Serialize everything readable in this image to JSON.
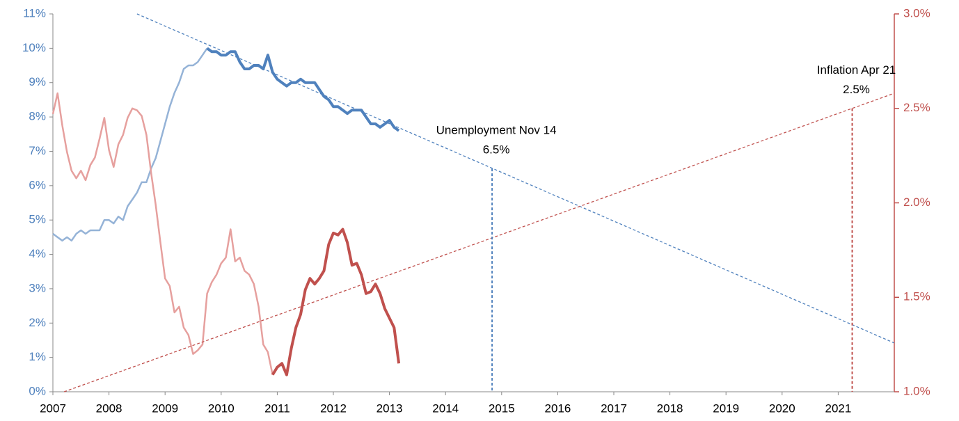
{
  "chart_data": {
    "type": "line",
    "xlim": [
      2007,
      2022
    ],
    "xticks": [
      2007,
      2008,
      2009,
      2010,
      2011,
      2012,
      2013,
      2014,
      2015,
      2016,
      2017,
      2018,
      2019,
      2020,
      2021
    ],
    "ylim": [
      0,
      11
    ],
    "yticks": [
      {
        "value": 0,
        "label": "0%"
      },
      {
        "value": 1,
        "label": "1%"
      },
      {
        "value": 2,
        "label": "2%"
      },
      {
        "value": 3,
        "label": "3%"
      },
      {
        "value": 4,
        "label": "4%"
      },
      {
        "value": 5,
        "label": "5%"
      },
      {
        "value": 6,
        "label": "6%"
      },
      {
        "value": 7,
        "label": "7%"
      },
      {
        "value": 8,
        "label": "8%"
      },
      {
        "value": 9,
        "label": "9%"
      },
      {
        "value": 10,
        "label": "10%"
      },
      {
        "value": 11,
        "label": "11%"
      }
    ],
    "y2lim": [
      1.0,
      3.0
    ],
    "y2ticks": [
      {
        "value": 1.0,
        "label": "1.0%"
      },
      {
        "value": 1.5,
        "label": "1.5%"
      },
      {
        "value": 2.0,
        "label": "2.0%"
      },
      {
        "value": 2.5,
        "label": "2.5%"
      },
      {
        "value": 3.0,
        "label": "3.0%"
      }
    ],
    "y_color": "#4f81bd",
    "y2_color": "#c0504d",
    "series": [
      {
        "color": "#95b3d7",
        "line_width": 2.5,
        "x": [
          2007.0,
          2007.083,
          2007.167,
          2007.25,
          2007.333,
          2007.417,
          2007.5,
          2007.583,
          2007.667,
          2007.75,
          2007.833,
          2007.917,
          2008.0,
          2008.083,
          2008.167,
          2008.25,
          2008.333,
          2008.417,
          2008.5,
          2008.583,
          2008.667,
          2008.75,
          2008.833,
          2008.917,
          2009.0,
          2009.083,
          2009.167,
          2009.25,
          2009.333,
          2009.417,
          2009.5,
          2009.583,
          2009.667,
          2009.75
        ],
        "values": [
          4.6,
          4.5,
          4.4,
          4.5,
          4.4,
          4.6,
          4.7,
          4.6,
          4.7,
          4.7,
          4.7,
          5.0,
          5.0,
          4.9,
          5.1,
          5.0,
          5.4,
          5.6,
          5.8,
          6.1,
          6.1,
          6.5,
          6.8,
          7.3,
          7.8,
          8.3,
          8.7,
          9.0,
          9.4,
          9.5,
          9.5,
          9.6,
          9.8,
          10.0
        ]
      },
      {
        "color": "#4f81bd",
        "line_width": 4,
        "x": [
          2009.75,
          2009.833,
          2009.917,
          2010.0,
          2010.083,
          2010.167,
          2010.25,
          2010.333,
          2010.417,
          2010.5,
          2010.583,
          2010.667,
          2010.75,
          2010.833,
          2010.917,
          2011.0,
          2011.083,
          2011.167,
          2011.25,
          2011.333,
          2011.417,
          2011.5,
          2011.583,
          2011.667,
          2011.75,
          2011.833,
          2011.917,
          2012.0,
          2012.083,
          2012.167,
          2012.25,
          2012.333,
          2012.417,
          2012.5,
          2012.583,
          2012.667,
          2012.75,
          2012.833,
          2012.917,
          2013.0,
          2013.083,
          2013.167
        ],
        "values": [
          10.0,
          9.9,
          9.9,
          9.8,
          9.8,
          9.9,
          9.9,
          9.6,
          9.4,
          9.4,
          9.5,
          9.5,
          9.4,
          9.8,
          9.3,
          9.1,
          9.0,
          8.9,
          9.0,
          9.0,
          9.1,
          9.0,
          9.0,
          9.0,
          8.8,
          8.6,
          8.5,
          8.3,
          8.3,
          8.2,
          8.1,
          8.2,
          8.2,
          8.2,
          8.0,
          7.8,
          7.8,
          7.7,
          7.8,
          7.9,
          7.7,
          7.6
        ]
      },
      {
        "color": "#e6a09e",
        "line_width": 2.5,
        "axis": "y2",
        "x": [
          2007.0,
          2007.083,
          2007.167,
          2007.25,
          2007.333,
          2007.417,
          2007.5,
          2007.583,
          2007.667,
          2007.75,
          2007.833,
          2007.917,
          2008.0,
          2008.083,
          2008.167,
          2008.25,
          2008.333,
          2008.417,
          2008.5,
          2008.583,
          2008.667,
          2008.75,
          2008.833,
          2008.917,
          2009.0,
          2009.083,
          2009.167,
          2009.25,
          2009.333,
          2009.417,
          2009.5,
          2009.583,
          2009.667,
          2009.75,
          2009.833,
          2009.917,
          2010.0,
          2010.083,
          2010.167,
          2010.25,
          2010.333,
          2010.417,
          2010.5,
          2010.583,
          2010.667,
          2010.75,
          2010.833,
          2010.917
        ],
        "values": [
          2.47,
          2.58,
          2.41,
          2.27,
          2.17,
          2.13,
          2.17,
          2.12,
          2.2,
          2.24,
          2.34,
          2.45,
          2.28,
          2.19,
          2.31,
          2.36,
          2.45,
          2.5,
          2.49,
          2.46,
          2.36,
          2.16,
          1.99,
          1.79,
          1.6,
          1.56,
          1.42,
          1.45,
          1.34,
          1.3,
          1.2,
          1.22,
          1.25,
          1.52,
          1.58,
          1.62,
          1.68,
          1.71,
          1.86,
          1.69,
          1.71,
          1.64,
          1.62,
          1.57,
          1.45,
          1.25,
          1.21,
          1.09
        ]
      },
      {
        "color": "#c0504d",
        "line_width": 4,
        "axis": "y2",
        "x": [
          2010.917,
          2011.0,
          2011.083,
          2011.167,
          2011.25,
          2011.333,
          2011.417,
          2011.5,
          2011.583,
          2011.667,
          2011.75,
          2011.833,
          2011.917,
          2012.0,
          2012.083,
          2012.167,
          2012.25,
          2012.333,
          2012.417,
          2012.5,
          2012.583,
          2012.667,
          2012.75,
          2012.833,
          2012.917,
          2013.0,
          2013.083,
          2013.167
        ],
        "values": [
          1.09,
          1.13,
          1.15,
          1.09,
          1.23,
          1.34,
          1.41,
          1.54,
          1.6,
          1.57,
          1.6,
          1.64,
          1.78,
          1.84,
          1.83,
          1.86,
          1.79,
          1.67,
          1.68,
          1.62,
          1.52,
          1.53,
          1.57,
          1.52,
          1.44,
          1.39,
          1.34,
          1.15
        ]
      },
      {
        "color": "#4f81bd",
        "line_width": 1.3,
        "dashed": true,
        "x": [
          2008.5,
          2022.0
        ],
        "values": [
          11.0,
          1.42
        ]
      },
      {
        "color": "#c0504d",
        "line_width": 1.3,
        "dashed": true,
        "axis": "y2",
        "x": [
          2007.2,
          2022.0
        ],
        "values": [
          1.0,
          2.58
        ]
      }
    ],
    "annotations": [
      {
        "lines": [
          "Unemployment Nov 14",
          "6.5%"
        ],
        "x": 2014.83,
        "y": 6.5,
        "color": "#4f81bd"
      },
      {
        "lines": [
          "Inflation Apr 21",
          "2.5%"
        ],
        "x": 2021.25,
        "y": 2.5,
        "axis": "y2",
        "color": "#c0504d"
      }
    ]
  }
}
